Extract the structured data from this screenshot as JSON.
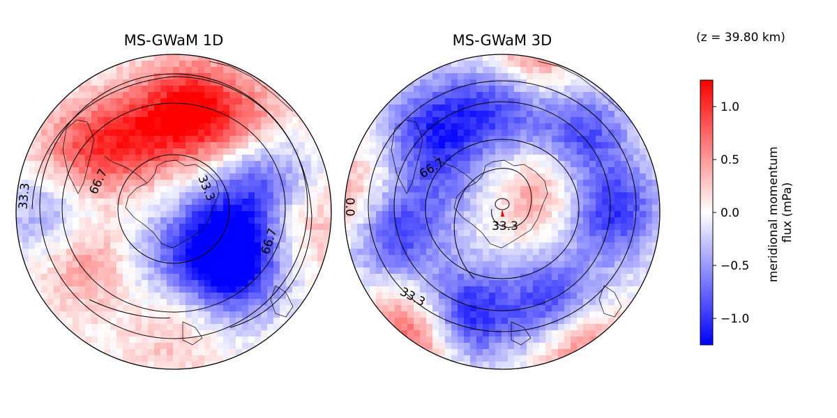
{
  "annotation": "(z = 39.80 km)",
  "colors": {
    "negative": "#0000ff",
    "zero": "#ffffff",
    "positive": "#ff0000",
    "contour": "#000000"
  },
  "chart_data": [
    {
      "type": "heatmap",
      "projection": "south-polar-stereographic",
      "title": "MS-GWaM 1D",
      "contour_levels": [
        33.3,
        66.7
      ],
      "contour_labels": [
        "33.3",
        "66.7",
        "33.3",
        "66.7"
      ],
      "features": [
        {
          "bearing": 10,
          "dist": 0.65,
          "value": 1.2
        },
        {
          "bearing": 330,
          "dist": 0.55,
          "value": 0.8
        },
        {
          "bearing": 40,
          "dist": 0.75,
          "value": 0.5
        },
        {
          "bearing": 300,
          "dist": 0.7,
          "value": 0.7
        },
        {
          "bearing": 70,
          "dist": 0.6,
          "value": -0.8
        },
        {
          "bearing": 120,
          "dist": 0.35,
          "value": -1.1
        },
        {
          "bearing": 135,
          "dist": 0.55,
          "value": -0.9
        },
        {
          "bearing": 270,
          "dist": 0.75,
          "value": -0.6
        },
        {
          "bearing": 240,
          "dist": 0.62,
          "value": 0.6
        },
        {
          "bearing": 200,
          "dist": 0.3,
          "value": -0.4
        },
        {
          "bearing": 180,
          "dist": 0.8,
          "value": 0.3
        },
        {
          "bearing": 95,
          "dist": 0.85,
          "value": 0.4
        }
      ]
    },
    {
      "type": "heatmap",
      "projection": "south-polar-stereographic",
      "title": "MS-GWaM 3D",
      "contour_levels": [
        0.0,
        33.3,
        66.7
      ],
      "contour_labels": [
        "66.7",
        "33.3",
        "33.3",
        "0.0"
      ],
      "features": [
        {
          "bearing": 0,
          "dist": 0.7,
          "value": -1.0
        },
        {
          "bearing": 45,
          "dist": 0.7,
          "value": -0.9
        },
        {
          "bearing": 90,
          "dist": 0.7,
          "value": -1.0
        },
        {
          "bearing": 150,
          "dist": 0.7,
          "value": -1.2
        },
        {
          "bearing": 200,
          "dist": 0.7,
          "value": -1.2
        },
        {
          "bearing": 260,
          "dist": 0.7,
          "value": -1.0
        },
        {
          "bearing": 320,
          "dist": 0.7,
          "value": -0.9
        },
        {
          "bearing": 60,
          "dist": 0.3,
          "value": 0.6
        },
        {
          "bearing": 10,
          "dist": 0.97,
          "value": 0.8
        },
        {
          "bearing": 150,
          "dist": 0.95,
          "value": 1.0
        },
        {
          "bearing": 215,
          "dist": 0.97,
          "value": 1.0
        },
        {
          "bearing": 275,
          "dist": 0.97,
          "value": 0.6
        },
        {
          "bearing": 300,
          "dist": 0.4,
          "value": -0.4
        }
      ]
    }
  ],
  "colorbar": {
    "label_lines": [
      "meridional momentum",
      "flux (mPa)"
    ],
    "vmin": -1.25,
    "vmax": 1.25,
    "ticks": [
      {
        "value": 1.0,
        "label": "1.0"
      },
      {
        "value": 0.5,
        "label": "0.5"
      },
      {
        "value": 0.0,
        "label": "0.0"
      },
      {
        "value": -0.5,
        "label": "−0.5"
      },
      {
        "value": -1.0,
        "label": "−1.0"
      }
    ]
  }
}
